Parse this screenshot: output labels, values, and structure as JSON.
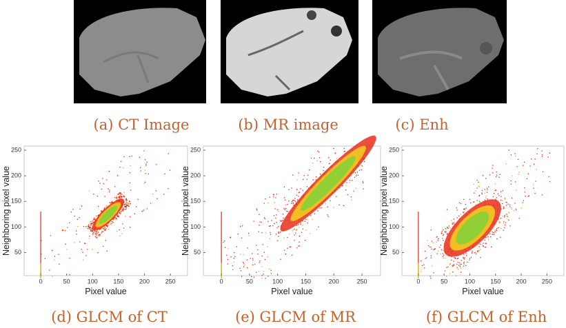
{
  "images": [
    {
      "caption": "(a) CT Image"
    },
    {
      "caption": "(b) MR image"
    },
    {
      "caption": "(c) Enh"
    }
  ],
  "plots": [
    {
      "caption": "(d) GLCM of CT",
      "xlabel": "Pixel value",
      "ylabel": "Neighboring pixel value",
      "xlim": [
        -32,
        283
      ],
      "ylim": [
        5,
        258
      ],
      "xticks": [
        0,
        50,
        100,
        150,
        200,
        250
      ],
      "yticks": [
        50,
        100,
        150,
        200,
        250
      ]
    },
    {
      "caption": "(e) GLCM of MR",
      "xlabel": "Pixel value",
      "ylabel": "Neighboring pixel value",
      "xlim": [
        -32,
        283
      ],
      "ylim": [
        5,
        258
      ],
      "xticks": [
        0,
        50,
        100,
        150,
        200,
        250
      ],
      "yticks": [
        50,
        100,
        150,
        200,
        250
      ]
    },
    {
      "caption": "(f) GLCM of Enh",
      "xlabel": "Pixel value",
      "ylabel": "Neighboring pixel value",
      "xlim": [
        -32,
        283
      ],
      "ylim": [
        5,
        258
      ],
      "xticks": [
        0,
        50,
        100,
        150,
        200,
        250
      ],
      "yticks": [
        50,
        100,
        150,
        200,
        250
      ]
    }
  ]
}
